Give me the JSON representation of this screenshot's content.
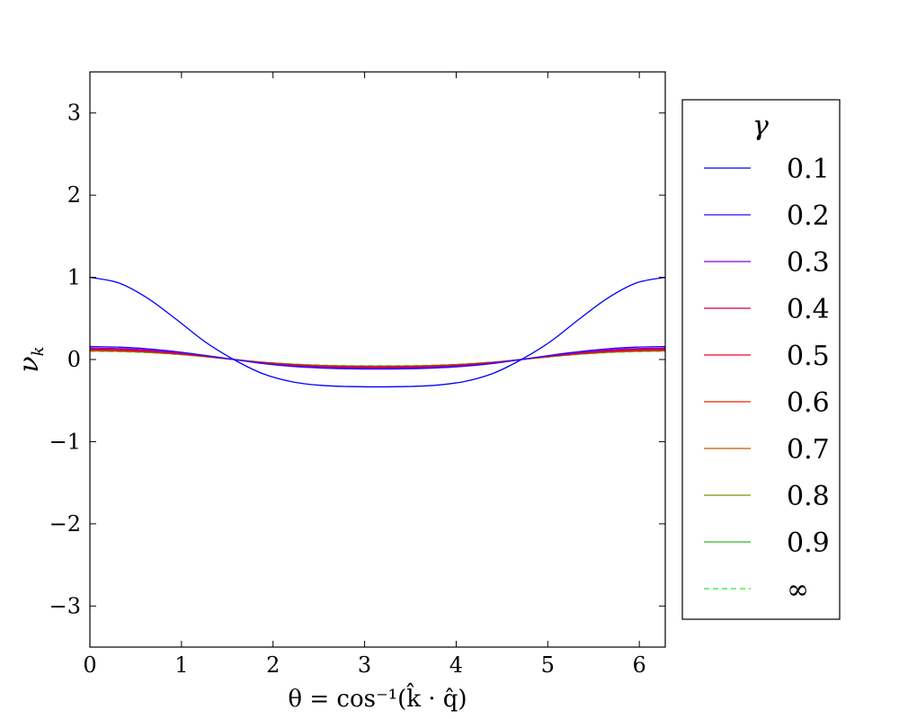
{
  "chart_data": {
    "type": "line",
    "xlabel": "θ = cos⁻¹(k̂ · q̂)",
    "ylabel": "ν",
    "ylabel_sub": "k",
    "xlim": [
      0,
      6.2832
    ],
    "ylim": [
      -3.5,
      3.5
    ],
    "x_ticks": [
      0,
      1,
      2,
      3,
      4,
      5,
      6
    ],
    "y_ticks": [
      -3,
      -2,
      -1,
      0,
      1,
      2,
      3
    ],
    "x_tick_labels": [
      "0",
      "1",
      "2",
      "3",
      "4",
      "5",
      "6"
    ],
    "y_tick_labels": [
      "−3",
      "−2",
      "−1",
      "0",
      "1",
      "2",
      "3"
    ],
    "grid": false,
    "legend": {
      "title": "γ",
      "position": "right"
    },
    "x": [
      0,
      0.3142,
      0.6283,
      0.9425,
      1.2566,
      1.5708,
      1.885,
      2.1991,
      2.5133,
      2.8274,
      3.1416,
      3.4558,
      3.7699,
      4.0841,
      4.3982,
      4.7124,
      5.0265,
      5.3407,
      5.6549,
      5.969,
      6.2832
    ],
    "series": [
      {
        "name": "0.1",
        "color": "#0000ff",
        "dashed": false,
        "values": [
          1.0,
          0.932,
          0.747,
          0.489,
          0.216,
          0.0,
          -0.171,
          -0.269,
          -0.314,
          -0.329,
          -0.333,
          -0.329,
          -0.314,
          -0.269,
          -0.171,
          0.0,
          0.216,
          0.489,
          0.747,
          0.932,
          1.0
        ]
      },
      {
        "name": "0.2",
        "color": "#3300ff",
        "dashed": false,
        "values": [
          0.158,
          0.151,
          0.13,
          0.096,
          0.051,
          0.0,
          -0.049,
          -0.083,
          -0.103,
          -0.113,
          -0.116,
          -0.113,
          -0.103,
          -0.083,
          -0.049,
          0.0,
          0.051,
          0.096,
          0.13,
          0.151,
          0.158
        ]
      },
      {
        "name": "0.3",
        "color": "#8800cc",
        "dashed": false,
        "values": [
          0.14,
          0.134,
          0.116,
          0.086,
          0.046,
          0.0,
          -0.044,
          -0.075,
          -0.093,
          -0.102,
          -0.105,
          -0.102,
          -0.093,
          -0.075,
          -0.044,
          0.0,
          0.046,
          0.086,
          0.116,
          0.134,
          0.14
        ]
      },
      {
        "name": "0.4",
        "color": "#cc0044",
        "dashed": false,
        "values": [
          0.128,
          0.122,
          0.106,
          0.079,
          0.042,
          0.0,
          -0.04,
          -0.069,
          -0.086,
          -0.094,
          -0.097,
          -0.094,
          -0.086,
          -0.069,
          -0.04,
          0.0,
          0.042,
          0.079,
          0.106,
          0.122,
          0.128
        ]
      },
      {
        "name": "0.5",
        "color": "#ff0022",
        "dashed": false,
        "values": [
          0.121,
          0.115,
          0.1,
          0.075,
          0.04,
          0.0,
          -0.038,
          -0.065,
          -0.081,
          -0.089,
          -0.092,
          -0.089,
          -0.081,
          -0.065,
          -0.038,
          0.0,
          0.04,
          0.075,
          0.1,
          0.115,
          0.121
        ]
      },
      {
        "name": "0.6",
        "color": "#ee2200",
        "dashed": false,
        "values": [
          0.115,
          0.11,
          0.095,
          0.071,
          0.038,
          0.0,
          -0.036,
          -0.062,
          -0.078,
          -0.085,
          -0.088,
          -0.085,
          -0.078,
          -0.062,
          -0.036,
          0.0,
          0.038,
          0.071,
          0.095,
          0.11,
          0.115
        ]
      },
      {
        "name": "0.7",
        "color": "#cc5500",
        "dashed": false,
        "values": [
          0.111,
          0.106,
          0.092,
          0.069,
          0.037,
          0.0,
          -0.035,
          -0.06,
          -0.075,
          -0.082,
          -0.085,
          -0.082,
          -0.075,
          -0.06,
          -0.035,
          0.0,
          0.037,
          0.069,
          0.092,
          0.106,
          0.111
        ]
      },
      {
        "name": "0.8",
        "color": "#779900",
        "dashed": false,
        "values": [
          0.107,
          0.102,
          0.089,
          0.067,
          0.036,
          0.0,
          -0.034,
          -0.058,
          -0.073,
          -0.08,
          -0.082,
          -0.08,
          -0.073,
          -0.058,
          -0.034,
          0.0,
          0.036,
          0.067,
          0.089,
          0.102,
          0.107
        ]
      },
      {
        "name": "0.9",
        "color": "#33bb22",
        "dashed": false,
        "values": [
          0.104,
          0.099,
          0.087,
          0.065,
          0.035,
          0.0,
          -0.033,
          -0.056,
          -0.071,
          -0.078,
          -0.08,
          -0.078,
          -0.071,
          -0.056,
          -0.033,
          0.0,
          0.035,
          0.065,
          0.087,
          0.099,
          0.104
        ]
      },
      {
        "name": "∞",
        "color": "#22ee22",
        "dashed": true,
        "values": [
          0.1,
          0.095,
          0.083,
          0.062,
          0.033,
          0.0,
          -0.031,
          -0.053,
          -0.067,
          -0.074,
          -0.076,
          -0.074,
          -0.067,
          -0.053,
          -0.031,
          0.0,
          0.033,
          0.062,
          0.083,
          0.095,
          0.1
        ]
      }
    ]
  }
}
